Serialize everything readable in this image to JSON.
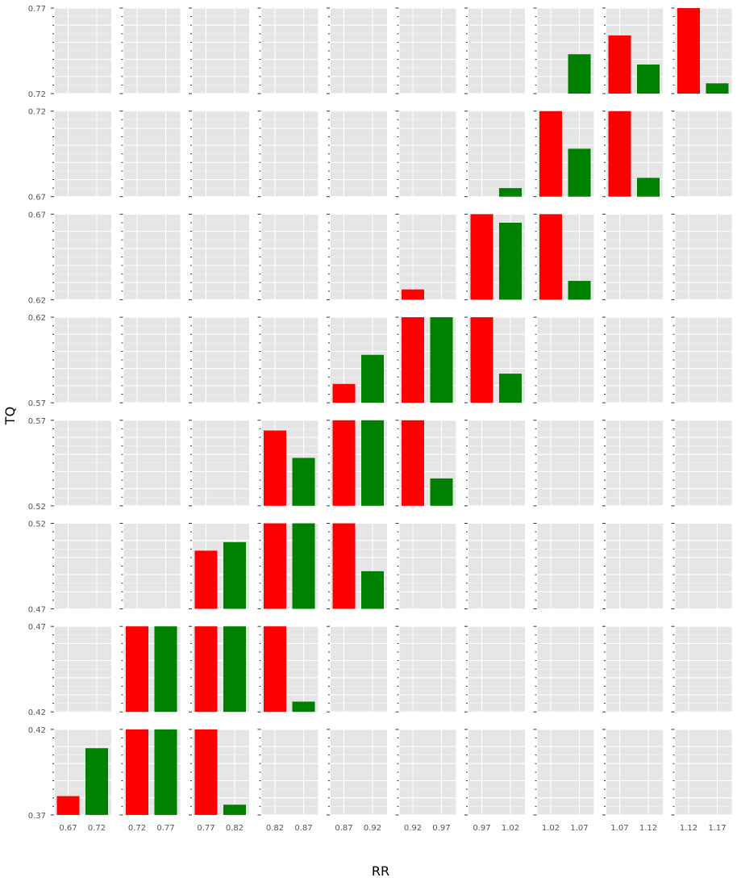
{
  "chart_data": {
    "type": "bar",
    "layout": "facet-grid",
    "xlabel": "RR",
    "ylabel": "TQ",
    "grid": true,
    "colors": {
      "red": "#ff0000",
      "green": "#008000",
      "panel_bg": "#e5e5e5",
      "grid": "#ffffff"
    },
    "column_x_ticks": [
      [
        "0.67",
        "0.72"
      ],
      [
        "0.72",
        "0.77"
      ],
      [
        "0.77",
        "0.82"
      ],
      [
        "0.82",
        "0.87"
      ],
      [
        "0.87",
        "0.92"
      ],
      [
        "0.92",
        "0.97"
      ],
      [
        "0.97",
        "1.02"
      ],
      [
        "1.02",
        "1.07"
      ],
      [
        "1.07",
        "1.12"
      ],
      [
        "1.12",
        "1.17"
      ]
    ],
    "rows": [
      {
        "ylim": [
          0.72,
          0.77
        ],
        "yticks": [
          "0.77",
          "0.72"
        ],
        "bars": [
          [
            null,
            null
          ],
          [
            null,
            null
          ],
          [
            null,
            null
          ],
          [
            null,
            null
          ],
          [
            null,
            null
          ],
          [
            null,
            null
          ],
          [
            null,
            null
          ],
          [
            null,
            0.743
          ],
          [
            0.754,
            0.737
          ],
          [
            0.775,
            0.726
          ]
        ]
      },
      {
        "ylim": [
          0.67,
          0.72
        ],
        "yticks": [
          "0.72",
          "0.67"
        ],
        "bars": [
          [
            null,
            null
          ],
          [
            null,
            null
          ],
          [
            null,
            null
          ],
          [
            null,
            null
          ],
          [
            null,
            null
          ],
          [
            null,
            null
          ],
          [
            null,
            0.675
          ],
          [
            0.725,
            0.698
          ],
          [
            0.725,
            0.681
          ],
          [
            null,
            null
          ]
        ]
      },
      {
        "ylim": [
          0.62,
          0.67
        ],
        "yticks": [
          "0.67",
          "0.62"
        ],
        "bars": [
          [
            null,
            null
          ],
          [
            null,
            null
          ],
          [
            null,
            null
          ],
          [
            null,
            null
          ],
          [
            null,
            null
          ],
          [
            0.626,
            null
          ],
          [
            0.675,
            0.665
          ],
          [
            0.675,
            0.631
          ],
          [
            null,
            null
          ],
          [
            null,
            null
          ]
        ]
      },
      {
        "ylim": [
          0.57,
          0.62
        ],
        "yticks": [
          "0.62",
          "0.57"
        ],
        "bars": [
          [
            null,
            null
          ],
          [
            null,
            null
          ],
          [
            null,
            null
          ],
          [
            null,
            null
          ],
          [
            0.581,
            0.598
          ],
          [
            0.625,
            0.625
          ],
          [
            0.625,
            0.587
          ],
          [
            null,
            null
          ],
          [
            null,
            null
          ],
          [
            null,
            null
          ]
        ]
      },
      {
        "ylim": [
          0.52,
          0.57
        ],
        "yticks": [
          "0.57",
          "0.52"
        ],
        "bars": [
          [
            null,
            null
          ],
          [
            null,
            null
          ],
          [
            null,
            null
          ],
          [
            0.564,
            0.548
          ],
          [
            0.575,
            0.575
          ],
          [
            0.575,
            0.536
          ],
          [
            null,
            null
          ],
          [
            null,
            null
          ],
          [
            null,
            null
          ],
          [
            null,
            null
          ]
        ]
      },
      {
        "ylim": [
          0.47,
          0.52
        ],
        "yticks": [
          "0.52",
          "0.47"
        ],
        "bars": [
          [
            null,
            null
          ],
          [
            null,
            null
          ],
          [
            0.504,
            0.509
          ],
          [
            0.525,
            0.525
          ],
          [
            0.525,
            0.492
          ],
          [
            null,
            null
          ],
          [
            null,
            null
          ],
          [
            null,
            null
          ],
          [
            null,
            null
          ],
          [
            null,
            null
          ]
        ]
      },
      {
        "ylim": [
          0.42,
          0.47
        ],
        "yticks": [
          "0.47",
          "0.42"
        ],
        "bars": [
          [
            null,
            null
          ],
          [
            0.475,
            0.475
          ],
          [
            0.475,
            0.475
          ],
          [
            0.475,
            0.426
          ],
          [
            null,
            null
          ],
          [
            null,
            null
          ],
          [
            null,
            null
          ],
          [
            null,
            null
          ],
          [
            null,
            null
          ],
          [
            null,
            null
          ]
        ]
      },
      {
        "ylim": [
          0.37,
          0.42
        ],
        "yticks": [
          "0.42",
          "0.37"
        ],
        "bars": [
          [
            0.381,
            0.409
          ],
          [
            0.425,
            0.425
          ],
          [
            0.425,
            0.376
          ],
          [
            null,
            null
          ],
          [
            null,
            null
          ],
          [
            null,
            null
          ],
          [
            null,
            null
          ],
          [
            null,
            null
          ],
          [
            null,
            null
          ],
          [
            null,
            null
          ]
        ]
      }
    ]
  }
}
